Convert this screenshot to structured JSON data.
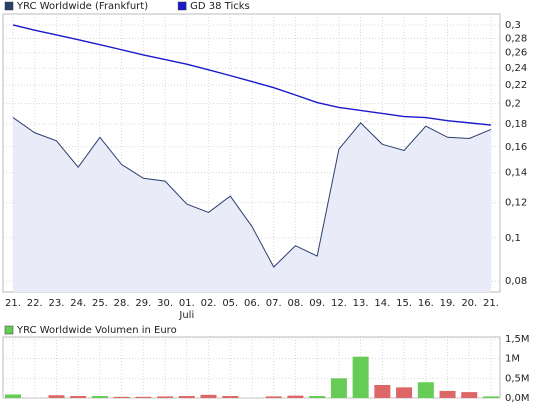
{
  "chart_data": [
    {
      "type": "line",
      "categories": [
        "21.",
        "22.",
        "23.",
        "24.",
        "25.",
        "28.",
        "29.",
        "30.",
        "01.",
        "02.",
        "05.",
        "06.",
        "07.",
        "08.",
        "09.",
        "12.",
        "13.",
        "14.",
        "15.",
        "16.",
        "19.",
        "20.",
        "21."
      ],
      "annotations": [
        {
          "label": "Juli",
          "category": 8
        }
      ],
      "series": [
        {
          "name": "YRC Worldwide (Frankfurt)",
          "color": "#2a3f6e",
          "fill": "#e9ecf8",
          "values": [
            0.186,
            0.172,
            0.165,
            0.144,
            0.168,
            0.146,
            0.136,
            0.134,
            0.119,
            0.114,
            0.124,
            0.106,
            0.086,
            0.096,
            0.091,
            0.158,
            0.181,
            0.162,
            0.157,
            0.178,
            0.168,
            0.167,
            0.175
          ]
        },
        {
          "name": "GD 38 Ticks",
          "color": "#1a1acc",
          "values": [
            0.3,
            0.292,
            0.285,
            0.278,
            0.271,
            0.264,
            0.257,
            0.251,
            0.245,
            0.238,
            0.231,
            0.224,
            0.217,
            0.209,
            0.201,
            0.196,
            0.193,
            0.19,
            0.187,
            0.186,
            0.183,
            0.181,
            0.179
          ]
        }
      ],
      "log_scale": true,
      "grid": true,
      "ylim": [
        0.0756,
        0.3175
      ],
      "yticks": [
        {
          "value": 0.08,
          "label": "0,08"
        },
        {
          "value": 0.1,
          "label": "0,1"
        },
        {
          "value": 0.12,
          "label": "0,12"
        },
        {
          "value": 0.14,
          "label": "0,14"
        },
        {
          "value": 0.16,
          "label": "0,16"
        },
        {
          "value": 0.18,
          "label": "0,18"
        },
        {
          "value": 0.2,
          "label": "0,2"
        },
        {
          "value": 0.22,
          "label": "0,22"
        },
        {
          "value": 0.24,
          "label": "0,24"
        },
        {
          "value": 0.26,
          "label": "0,26"
        },
        {
          "value": 0.28,
          "label": "0,28"
        },
        {
          "value": 0.3,
          "label": "0,3"
        }
      ]
    },
    {
      "type": "bar",
      "series": [
        {
          "name": "YRC Worldwide Volumen in Euro",
          "color": "#66cc55",
          "values": [
            90000,
            0,
            70000,
            50000,
            50000,
            30000,
            30000,
            40000,
            50000,
            80000,
            50000,
            0,
            40000,
            60000,
            50000,
            500000,
            1050000,
            330000,
            270000,
            400000,
            180000,
            150000,
            40000
          ],
          "colors": [
            "#66cc55",
            "#66cc55",
            "#dd6666",
            "#dd6666",
            "#66cc55",
            "#dd6666",
            "#dd6666",
            "#dd6666",
            "#dd6666",
            "#dd6666",
            "#dd6666",
            "#dd6666",
            "#dd6666",
            "#dd6666",
            "#66cc55",
            "#66cc55",
            "#66cc55",
            "#dd6666",
            "#dd6666",
            "#66cc55",
            "#dd6666",
            "#dd6666",
            "#66cc55"
          ]
        }
      ],
      "grid": true,
      "ylim": [
        0,
        1550000
      ],
      "yticks": [
        {
          "value": 0,
          "label": "0,0M"
        },
        {
          "value": 500000,
          "label": "0,5M"
        },
        {
          "value": 1000000,
          "label": "1M"
        },
        {
          "value": 1500000,
          "label": "1,5M"
        }
      ]
    }
  ]
}
